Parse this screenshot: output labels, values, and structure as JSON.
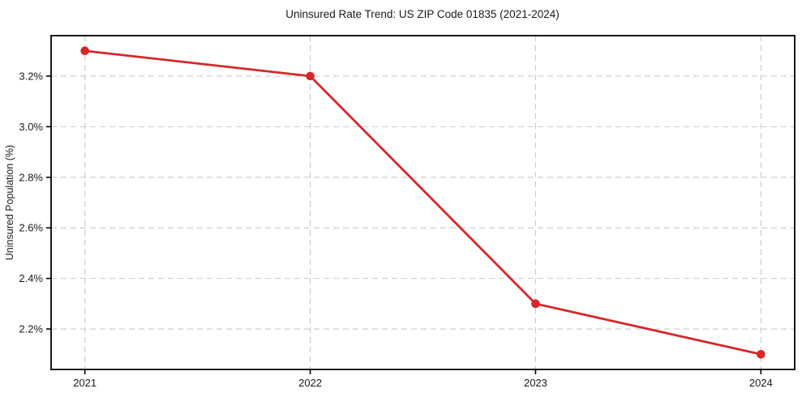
{
  "chart_data": {
    "type": "line",
    "title": "Uninsured Rate Trend: US ZIP Code 01835 (2021-2024)",
    "xlabel": "",
    "ylabel": "Uninsured Population (%)",
    "x": [
      2021,
      2022,
      2023,
      2024
    ],
    "categories": [
      "2021",
      "2022",
      "2023",
      "2024"
    ],
    "series": [
      {
        "name": "Uninsured Population (%)",
        "values": [
          3.3,
          3.2,
          2.3,
          2.1
        ]
      }
    ],
    "x_tick_labels": [
      "2021",
      "2022",
      "2023",
      "2024"
    ],
    "y_tick_values": [
      2.2,
      2.4,
      2.6,
      2.8,
      3.0,
      3.2
    ],
    "y_tick_labels": [
      "2.2%",
      "2.4%",
      "2.6%",
      "2.8%",
      "3.0%",
      "3.2%"
    ],
    "xlim": [
      2020.85,
      2024.15
    ],
    "ylim": [
      2.04,
      3.36
    ],
    "grid": true,
    "grid_style": "dashed",
    "legend_position": "none",
    "colors": {
      "line": "#d62728",
      "marker": "#d62728",
      "grid": "#c9c9c9",
      "spine": "#000000",
      "tick": "#000000",
      "background": "#ffffff"
    }
  }
}
